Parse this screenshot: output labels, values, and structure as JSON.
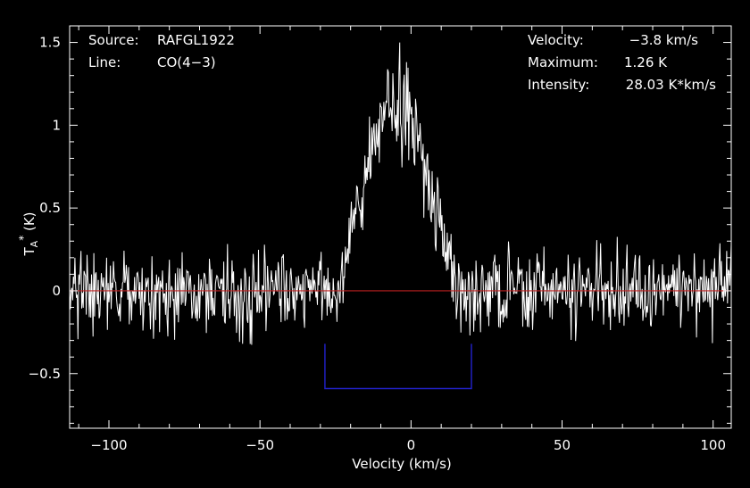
{
  "chart_data": {
    "type": "line",
    "xlabel": "Velocity (km/s)",
    "ylabel": "T_A* (K)",
    "xlim": [
      -113,
      106
    ],
    "ylim": [
      -0.83,
      1.6
    ],
    "xticks": [
      -100,
      -50,
      0,
      50,
      100
    ],
    "xtick_labels": [
      "−100",
      "−50",
      "0",
      "50",
      "100"
    ],
    "yticks": [
      -0.5,
      0,
      0.5,
      1,
      1.5
    ],
    "ytick_labels": [
      "−0.5",
      "0",
      "0.5",
      "1",
      "1.5"
    ],
    "grid": false,
    "colors": {
      "background": "#000000",
      "spectrum": "#ffffff",
      "baseline": "#c02020",
      "window": "#2020c0",
      "frame": "#ffffff"
    },
    "baseline_y": 0,
    "integration_window": {
      "x": [
        -28.5,
        20
      ],
      "y": [
        -0.59,
        -0.32
      ]
    },
    "spectrum_profile": {
      "noise_rms": 0.12,
      "channel_width_kms": 0.25,
      "peak_velocity": -3.8,
      "peak_value": 1.26,
      "line_edges": [
        -24,
        15
      ]
    },
    "annotations": {
      "source_label": "Source:",
      "source_value": "RAFGL1922",
      "line_label": "Line:",
      "line_value": "CO(4−3)",
      "velocity_label": "Velocity:",
      "velocity_value": "−3.8 km/s",
      "maximum_label": "Maximum:",
      "maximum_value": "1.26 K",
      "intensity_label": "Intensity:",
      "intensity_value": "28.03 K*km/s"
    }
  }
}
